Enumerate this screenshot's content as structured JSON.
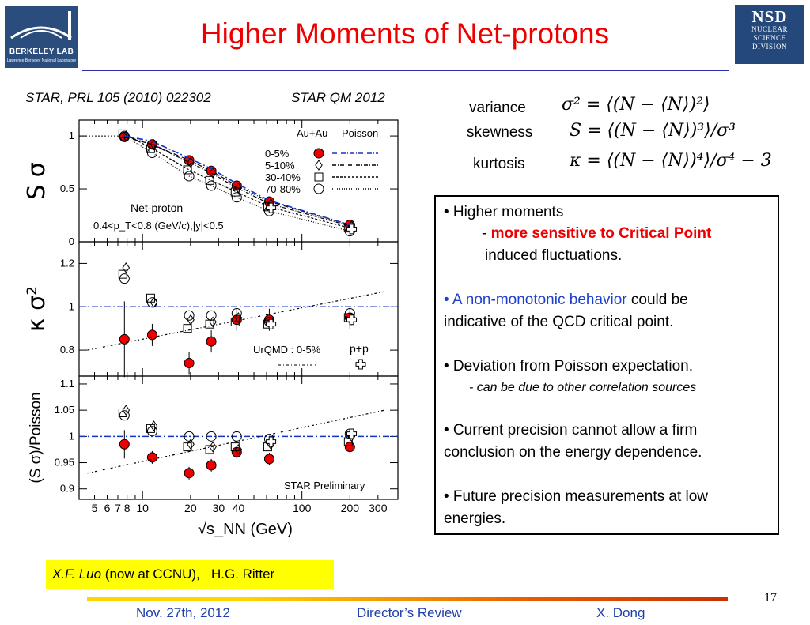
{
  "header": {
    "title": "Higher Moments of Net-protons",
    "logo_left_line1": "BERKELEY LAB",
    "logo_left_line2": "Lawrence Berkeley National Laboratory",
    "logo_right_line1": "NSD",
    "logo_right_lines": [
      "NUCLEAR",
      "SCIENCE",
      "DIVISION"
    ]
  },
  "refs": {
    "left": "STAR, PRL 105 (2010) 022302",
    "right": "STAR QM 2012"
  },
  "formulas": [
    {
      "label": "variance",
      "expr": "σ² = ⟨(N − ⟨N⟩)²⟩"
    },
    {
      "label": "skewness",
      "expr": "S = ⟨(N − ⟨N⟩)³⟩/σ³"
    },
    {
      "label": "kurtosis",
      "expr": "κ = ⟨(N − ⟨N⟩)⁴⟩/σ⁴ − 3"
    }
  ],
  "sidebox": {
    "b1": "• Higher moments",
    "b1_dash": "- ",
    "b1_red": "more sensitive to Critical Point",
    "b1_tail": "induced fluctuations.",
    "b2_blue": "• A non-monotonic behavior",
    "b2_tail1": " could be",
    "b2_tail2": "indicative of the QCD critical point.",
    "b3": "• Deviation from Poisson expectation.",
    "b3_sub": "- can be due to other correlation sources",
    "b4_l1": "• Current precision cannot allow a firm",
    "b4_l2": "conclusion on the energy dependence.",
    "b5_l1": "• Future precision measurements at low",
    "b5_l2": "energies."
  },
  "credit": {
    "name1": "X.F. Luo",
    "mid": " (now at CCNU),   ",
    "name2": "H.G. Ritter"
  },
  "footer": {
    "date": "Nov. 27th, 2012",
    "event": "Director’s Review",
    "author": "X. Dong",
    "page": "17"
  },
  "chart_data": {
    "type": "scatter",
    "xscale": "log",
    "xlim": [
      4,
      400
    ],
    "xticks": [
      5,
      6,
      7,
      8,
      10,
      20,
      30,
      40,
      100,
      200,
      300
    ],
    "xlabel": "√s_NN (GeV)",
    "legend": {
      "system": "Au+Au",
      "poisson": "Poisson",
      "centralities": [
        "0-5%",
        "5-10%",
        "30-40%",
        "70-80%"
      ],
      "urqmd": "UrQMD : 0-5%",
      "pp": "p+p"
    },
    "panels": [
      {
        "ylabel": "S σ",
        "ylim": [
          0,
          1.15
        ],
        "yticks": [
          0,
          0.5,
          1
        ],
        "yticklabels": [
          "0",
          "0.5",
          "1"
        ],
        "annotations": [
          "Net-proton",
          "0.4<p_T<0.8 (GeV/c),|y|<0.5"
        ],
        "series": [
          {
            "name": "0-5%",
            "x": [
              7.7,
              11.5,
              19.6,
              27,
              39,
              62.4,
              200
            ],
            "y": [
              0.99,
              0.92,
              0.77,
              0.67,
              0.53,
              0.38,
              0.16
            ]
          },
          {
            "name": "5-10%",
            "x": [
              7.7,
              11.5,
              19.6,
              27,
              39,
              62.4,
              200
            ],
            "y": [
              1.0,
              0.92,
              0.75,
              0.65,
              0.51,
              0.36,
              0.15
            ]
          },
          {
            "name": "30-40%",
            "x": [
              7.7,
              11.5,
              19.6,
              27,
              39,
              62.4,
              200
            ],
            "y": [
              1.02,
              0.88,
              0.68,
              0.58,
              0.47,
              0.33,
              0.13
            ]
          },
          {
            "name": "70-80%",
            "x": [
              7.7,
              11.5,
              19.6,
              27,
              39,
              62.4,
              200
            ],
            "y": [
              1.0,
              0.84,
              0.62,
              0.53,
              0.42,
              0.29,
              0.1
            ]
          },
          {
            "name": "p+p",
            "x": [
              62.4,
              200
            ],
            "y": [
              0.32,
              0.12
            ]
          },
          {
            "name": "Poisson",
            "x": [
              7.7,
              11.5,
              19.6,
              27,
              39,
              62.4,
              200
            ],
            "y": [
              1.0,
              0.95,
              0.79,
              0.69,
              0.55,
              0.39,
              0.16
            ]
          }
        ]
      },
      {
        "ylabel": "κ σ²",
        "ylim": [
          0.68,
          1.3
        ],
        "yticks": [
          0.8,
          1,
          1.2
        ],
        "yticklabels": [
          "0.8",
          "1",
          "1.2"
        ],
        "series": [
          {
            "name": "0-5%",
            "x": [
              7.7,
              11.5,
              19.6,
              27,
              39,
              62.4,
              200
            ],
            "y": [
              0.85,
              0.87,
              0.74,
              0.84,
              0.94,
              0.94,
              0.95
            ]
          },
          {
            "name": "5-10%",
            "x": [
              7.7,
              11.5,
              19.6,
              27,
              39,
              62.4,
              200
            ],
            "y": [
              1.18,
              1.02,
              0.94,
              0.93,
              0.95,
              0.92,
              0.94
            ]
          },
          {
            "name": "30-40%",
            "x": [
              7.7,
              11.5,
              19.6,
              27,
              39,
              62.4,
              200
            ],
            "y": [
              1.15,
              1.04,
              0.9,
              0.92,
              0.93,
              0.92,
              0.95
            ]
          },
          {
            "name": "70-80%",
            "x": [
              7.7,
              11.5,
              19.6,
              27,
              39,
              62.4,
              200
            ],
            "y": [
              1.13,
              1.02,
              0.96,
              0.96,
              0.97,
              0.93,
              0.97
            ]
          },
          {
            "name": "p+p",
            "x": [
              62.4,
              200
            ],
            "y": [
              0.92,
              0.94
            ]
          },
          {
            "name": "UrQMD : 0-5%",
            "x": [
              4.5,
              330
            ],
            "y": [
              0.8,
              1.07
            ]
          }
        ]
      },
      {
        "ylabel": "(S σ)/Poisson",
        "ylim": [
          0.88,
          1.115
        ],
        "yticks": [
          0.9,
          0.95,
          1,
          1.05,
          1.1
        ],
        "yticklabels": [
          "0.9",
          "0.95",
          "1",
          "1.05",
          "1.1"
        ],
        "annotations": [
          "STAR Preliminary"
        ],
        "series": [
          {
            "name": "0-5%",
            "x": [
              7.7,
              11.5,
              19.6,
              27,
              39,
              62.4,
              200
            ],
            "y": [
              0.985,
              0.96,
              0.93,
              0.945,
              0.97,
              0.957,
              0.98
            ]
          },
          {
            "name": "5-10%",
            "x": [
              7.7,
              11.5,
              19.6,
              27,
              39,
              62.4,
              200
            ],
            "y": [
              1.05,
              1.02,
              0.985,
              0.98,
              0.975,
              0.985,
              1.0
            ]
          },
          {
            "name": "30-40%",
            "x": [
              7.7,
              11.5,
              19.6,
              27,
              39,
              62.4,
              200
            ],
            "y": [
              1.045,
              1.015,
              0.98,
              0.975,
              0.98,
              0.98,
              0.99
            ]
          },
          {
            "name": "70-80%",
            "x": [
              7.7,
              11.5,
              19.6,
              27,
              39,
              62.4,
              200
            ],
            "y": [
              1.04,
              1.01,
              1.0,
              1.0,
              1.0,
              0.995,
              1.005
            ]
          },
          {
            "name": "p+p",
            "x": [
              62.4,
              200
            ],
            "y": [
              0.99,
              1.005
            ]
          },
          {
            "name": "UrQMD : 0-5%",
            "x": [
              4.5,
              330
            ],
            "y": [
              0.93,
              1.05
            ]
          }
        ]
      }
    ]
  }
}
